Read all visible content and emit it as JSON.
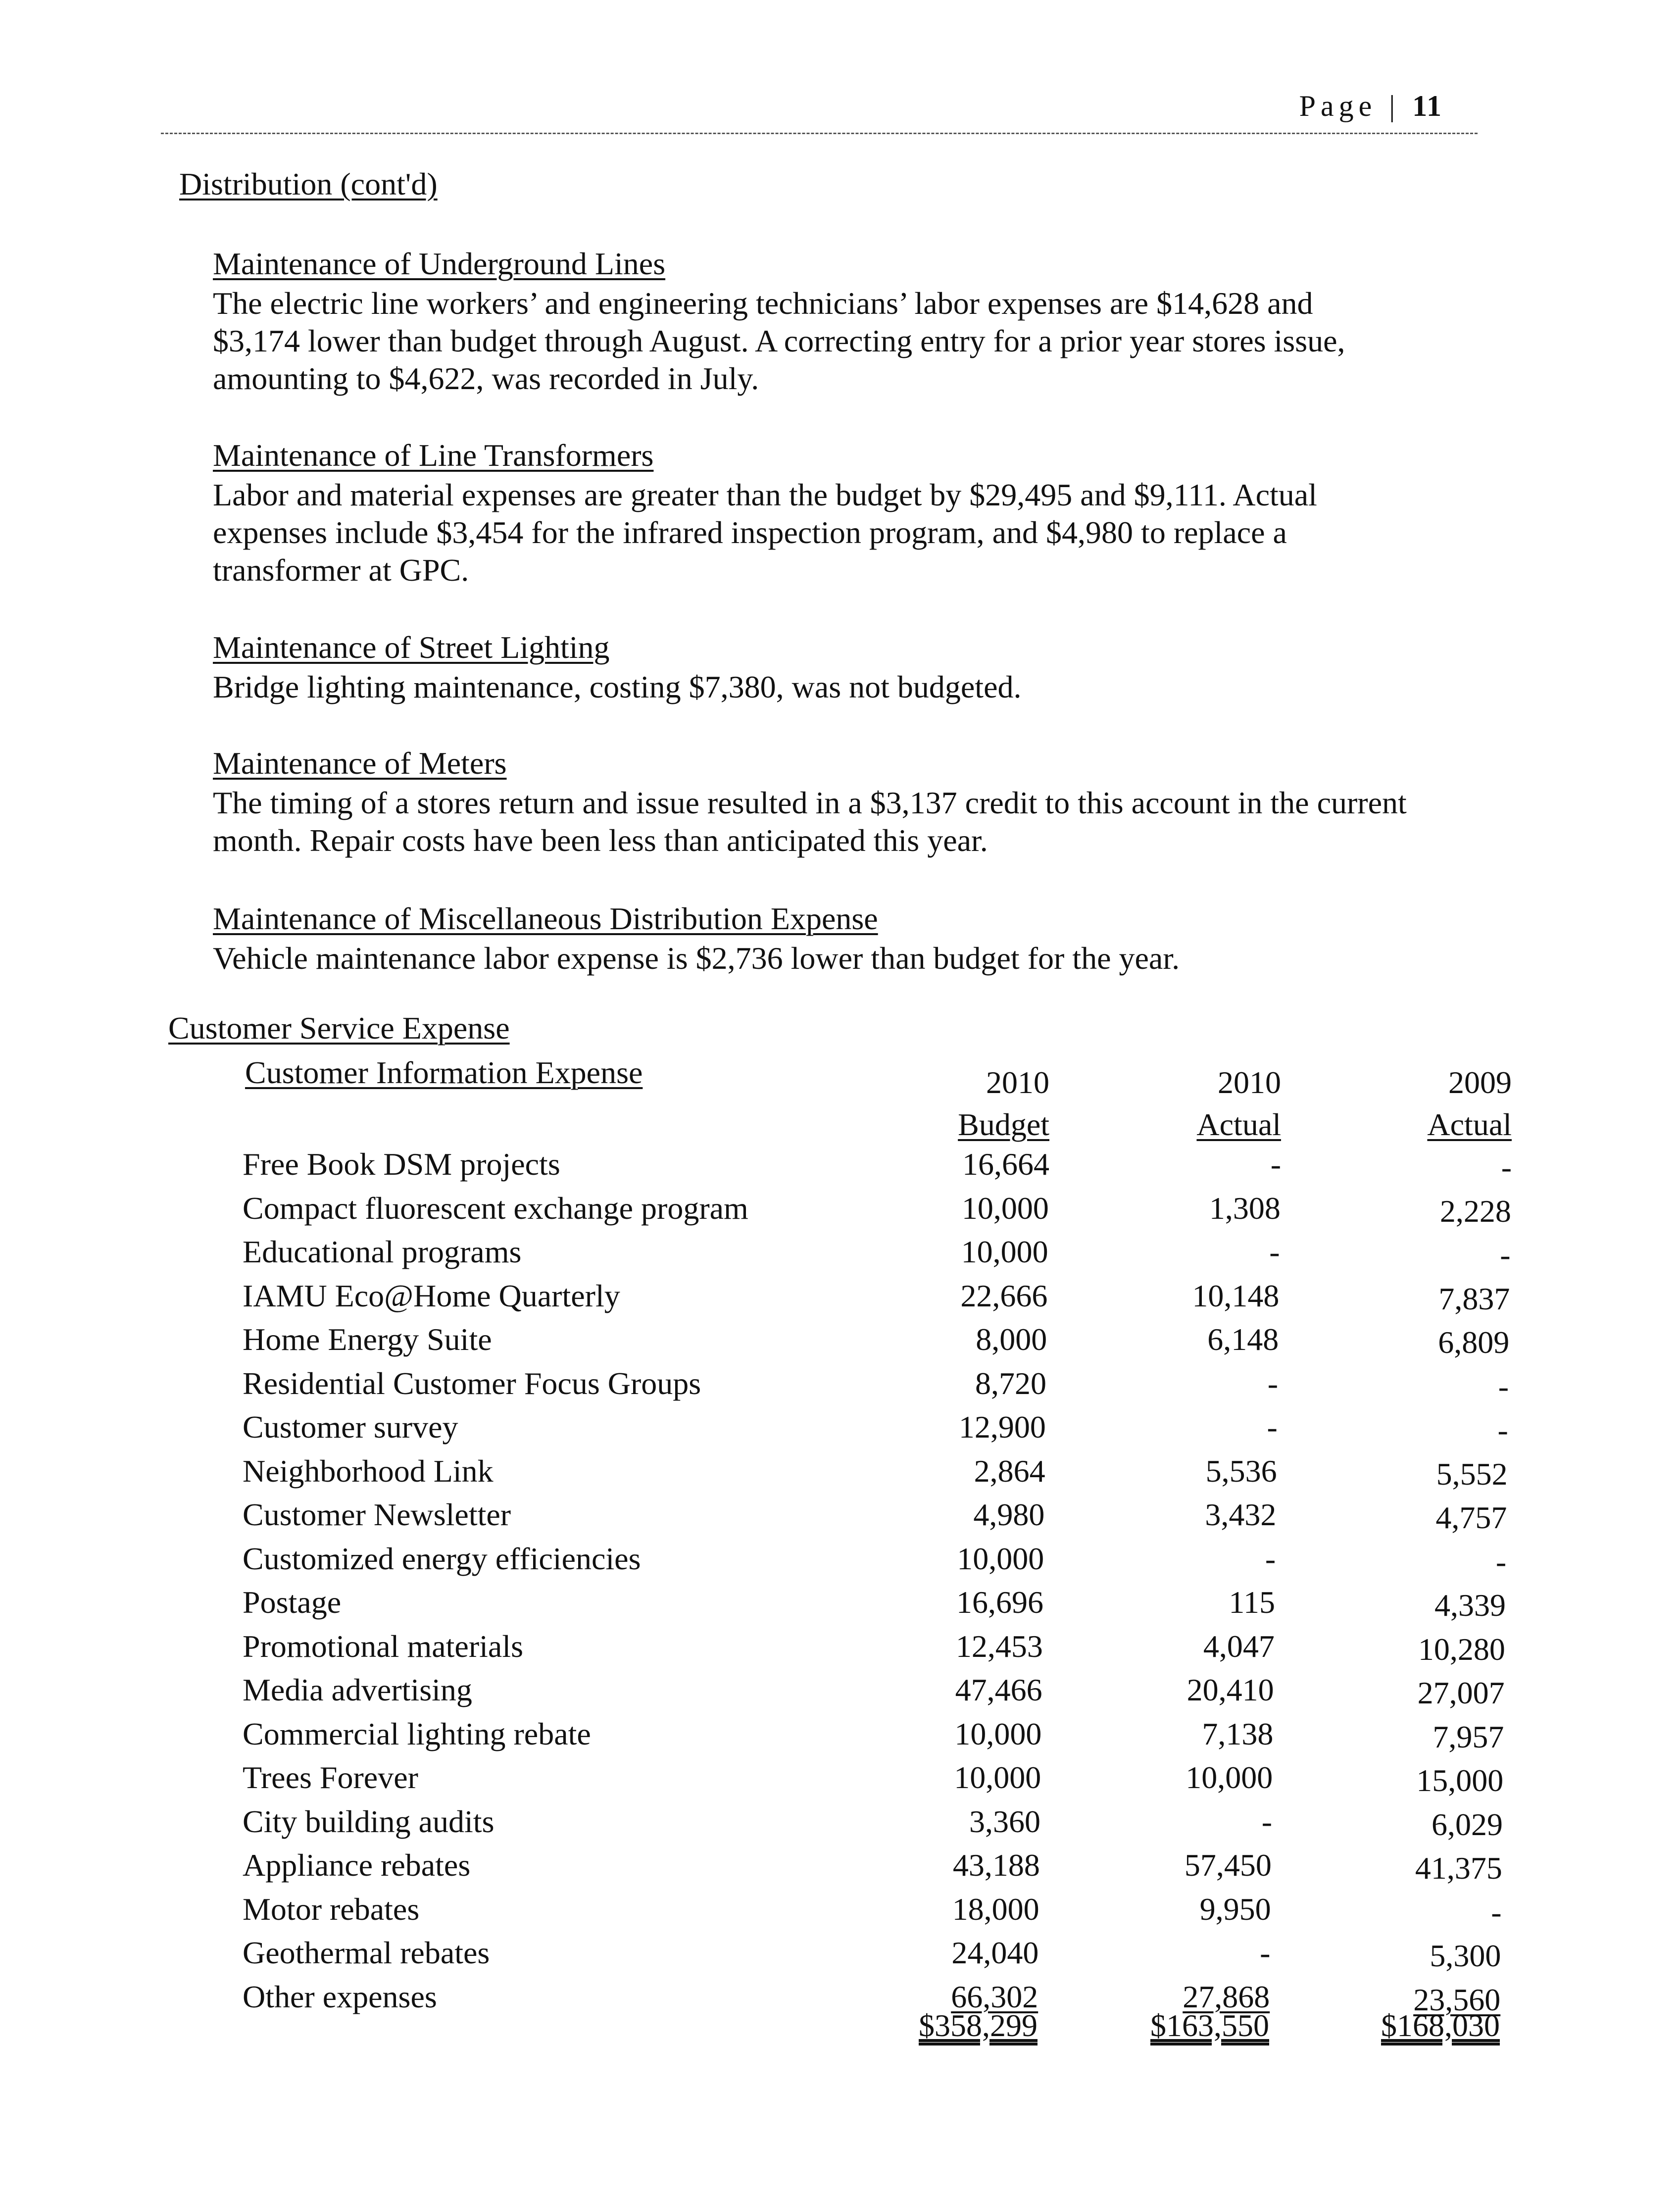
{
  "header": {
    "page_label": "Page | ",
    "page_number": "11"
  },
  "section_title": "Distribution (cont'd)",
  "sections": [
    {
      "title": "Maintenance of Underground Lines",
      "lines": [
        "The electric line workers’ and engineering technicians’ labor expenses are $14,628 and",
        "$3,174 lower than budget through August.  A correcting entry for a prior year stores issue,",
        "amounting to $4,622, was recorded in July."
      ]
    },
    {
      "title": "Maintenance of Line Transformers",
      "lines": [
        "Labor and material expenses are greater than the budget by $29,495 and $9,111.  Actual",
        "expenses include $3,454 for the infrared inspection program, and $4,980 to replace a",
        "transformer at GPC."
      ]
    },
    {
      "title": "Maintenance of Street Lighting",
      "lines": [
        "Bridge lighting maintenance, costing $7,380, was not budgeted."
      ]
    },
    {
      "title": "Maintenance of Meters",
      "lines": [
        "The timing of a stores return and issue resulted in a $3,137 credit to this account in the current",
        "month.  Repair costs have been less than anticipated this year."
      ]
    },
    {
      "title": "Maintenance of Miscellaneous Distribution Expense",
      "lines": [
        "Vehicle maintenance labor expense is $2,736 lower than budget for the year."
      ]
    }
  ],
  "customer_service": {
    "title": "Customer Service Expense",
    "table": {
      "title": "Customer Information Expense",
      "columns": [
        {
          "year": "2010",
          "label": "Budget"
        },
        {
          "year": "2010",
          "label": "Actual"
        },
        {
          "year": "2009",
          "label": "Actual"
        }
      ],
      "rows": [
        [
          "Free Book DSM projects",
          "16,664",
          "-",
          "-"
        ],
        [
          "Compact fluorescent exchange program",
          "10,000",
          "1,308",
          "2,228"
        ],
        [
          "Educational programs",
          "10,000",
          "-",
          "-"
        ],
        [
          "IAMU Eco@Home Quarterly",
          "22,666",
          "10,148",
          "7,837"
        ],
        [
          "Home Energy Suite",
          "8,000",
          "6,148",
          "6,809"
        ],
        [
          "Residential Customer Focus Groups",
          "8,720",
          "-",
          "-"
        ],
        [
          "Customer survey",
          "12,900",
          "-",
          "-"
        ],
        [
          "Neighborhood Link",
          "2,864",
          "5,536",
          "5,552"
        ],
        [
          "Customer Newsletter",
          "4,980",
          "3,432",
          "4,757"
        ],
        [
          "Customized energy efficiencies",
          "10,000",
          "-",
          "-"
        ],
        [
          "Postage",
          "16,696",
          "115",
          "4,339"
        ],
        [
          "Promotional materials",
          "12,453",
          "4,047",
          "10,280"
        ],
        [
          "Media advertising",
          "47,466",
          "20,410",
          "27,007"
        ],
        [
          "Commercial lighting rebate",
          "10,000",
          "7,138",
          "7,957"
        ],
        [
          "Trees Forever",
          "10,000",
          "10,000",
          "15,000"
        ],
        [
          "City building audits",
          "3,360",
          "-",
          "6,029"
        ],
        [
          "Appliance rebates",
          "43,188",
          "57,450",
          "41,375"
        ],
        [
          "Motor rebates",
          "18,000",
          "9,950",
          "-"
        ],
        [
          "Geothermal rebates",
          "24,040",
          "-",
          "5,300"
        ],
        [
          "Other expenses",
          "66,302",
          "27,868",
          "23,560"
        ]
      ],
      "totals": [
        "$358,299",
        "$163,550",
        "$168,030"
      ]
    }
  }
}
